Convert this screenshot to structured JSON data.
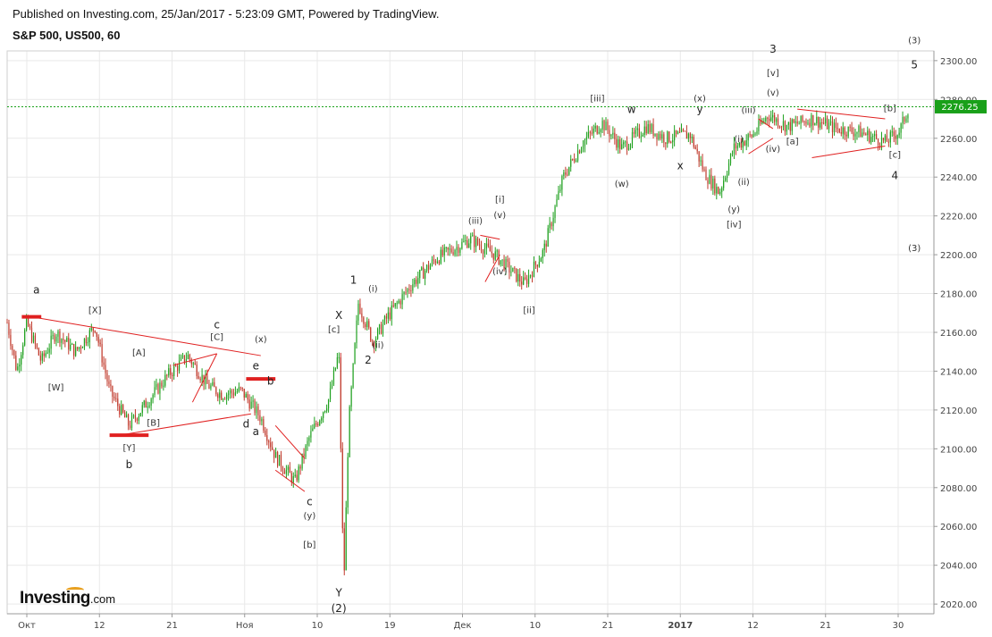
{
  "header": {
    "published": "Published on Investing.com, 25/Jan/2017 - 5:23:09 GMT, Powered by TradingView.",
    "instrument": "S&P 500, US500, 60"
  },
  "logo": {
    "brand": "Investing",
    "suffix": ".com"
  },
  "colors": {
    "up": "#1fa01f",
    "down": "#c0392b",
    "trend": "#e02020",
    "price_line": "#19a019",
    "price_tag": "#19a019",
    "grid": "#e9e9e9"
  },
  "chart_data": {
    "type": "candlestick",
    "title": "S&P 500, US500, 60",
    "ylim": [
      2015,
      2305
    ],
    "y_ticks": [
      "2020.00",
      "2040.00",
      "2060.00",
      "2080.00",
      "2100.00",
      "2120.00",
      "2140.00",
      "2160.00",
      "2180.00",
      "2200.00",
      "2220.00",
      "2240.00",
      "2260.00",
      "2280.00",
      "2300.00"
    ],
    "x_ticks": [
      "Окт",
      "12",
      "21",
      "Ноя",
      "10",
      "19",
      "Дек",
      "10",
      "21",
      "2017",
      "12",
      "21",
      "30"
    ],
    "current_price": "2276.25",
    "grid": true,
    "price_path": [
      {
        "t": 0,
        "y": 2165
      },
      {
        "t": 2,
        "y": 2140
      },
      {
        "t": 4,
        "y": 2165
      },
      {
        "t": 7,
        "y": 2145
      },
      {
        "t": 10,
        "y": 2160
      },
      {
        "t": 14,
        "y": 2150
      },
      {
        "t": 18,
        "y": 2163
      },
      {
        "t": 21,
        "y": 2130
      },
      {
        "t": 25,
        "y": 2112
      },
      {
        "t": 29,
        "y": 2125
      },
      {
        "t": 33,
        "y": 2138
      },
      {
        "t": 37,
        "y": 2148
      },
      {
        "t": 41,
        "y": 2133
      },
      {
        "t": 44,
        "y": 2128
      },
      {
        "t": 48,
        "y": 2130
      },
      {
        "t": 52,
        "y": 2116
      },
      {
        "t": 55,
        "y": 2096
      },
      {
        "t": 59,
        "y": 2083
      },
      {
        "t": 62,
        "y": 2106
      },
      {
        "t": 66,
        "y": 2126
      },
      {
        "t": 68,
        "y": 2150
      },
      {
        "t": 69,
        "y": 2028
      },
      {
        "t": 70,
        "y": 2112
      },
      {
        "t": 72,
        "y": 2175
      },
      {
        "t": 75,
        "y": 2155
      },
      {
        "t": 78,
        "y": 2168
      },
      {
        "t": 83,
        "y": 2185
      },
      {
        "t": 88,
        "y": 2198
      },
      {
        "t": 95,
        "y": 2208
      },
      {
        "t": 100,
        "y": 2200
      },
      {
        "t": 106,
        "y": 2185
      },
      {
        "t": 110,
        "y": 2202
      },
      {
        "t": 114,
        "y": 2240
      },
      {
        "t": 118,
        "y": 2258
      },
      {
        "t": 122,
        "y": 2268
      },
      {
        "t": 126,
        "y": 2255
      },
      {
        "t": 131,
        "y": 2266
      },
      {
        "t": 135,
        "y": 2260
      },
      {
        "t": 140,
        "y": 2262
      },
      {
        "t": 143,
        "y": 2242
      },
      {
        "t": 146,
        "y": 2232
      },
      {
        "t": 149,
        "y": 2255
      },
      {
        "t": 153,
        "y": 2262
      },
      {
        "t": 156,
        "y": 2272
      },
      {
        "t": 160,
        "y": 2266
      },
      {
        "t": 165,
        "y": 2270
      },
      {
        "t": 170,
        "y": 2265
      },
      {
        "t": 175,
        "y": 2263
      },
      {
        "t": 180,
        "y": 2258
      },
      {
        "t": 183,
        "y": 2264
      },
      {
        "t": 185,
        "y": 2277
      }
    ]
  },
  "waves": [
    {
      "text": "a",
      "t": 6,
      "y": 2180,
      "big": true
    },
    {
      "text": "[X]",
      "t": 18,
      "y": 2170
    },
    {
      "text": "[W]",
      "t": 10,
      "y": 2130
    },
    {
      "text": "[A]",
      "t": 27,
      "y": 2148
    },
    {
      "text": "[B]",
      "t": 30,
      "y": 2112
    },
    {
      "text": "[Y]",
      "t": 25,
      "y": 2099
    },
    {
      "text": "b",
      "t": 25,
      "y": 2090,
      "big": true
    },
    {
      "text": "c",
      "t": 43,
      "y": 2162,
      "big": true
    },
    {
      "text": "[C]",
      "t": 43,
      "y": 2156
    },
    {
      "text": "(x)",
      "t": 52,
      "y": 2155
    },
    {
      "text": "e",
      "t": 51,
      "y": 2141,
      "big": true
    },
    {
      "text": "b",
      "t": 54,
      "y": 2133,
      "big": true
    },
    {
      "text": "d",
      "t": 49,
      "y": 2111,
      "big": true
    },
    {
      "text": "a",
      "t": 51,
      "y": 2107,
      "big": true
    },
    {
      "text": "c",
      "t": 62,
      "y": 2071,
      "big": true
    },
    {
      "text": "(y)",
      "t": 62,
      "y": 2064
    },
    {
      "text": "[b]",
      "t": 62,
      "y": 2049
    },
    {
      "text": "Y",
      "t": 68,
      "y": 2024,
      "big": true
    },
    {
      "text": "(2)",
      "t": 68,
      "y": 2016,
      "big": true
    },
    {
      "text": "1",
      "t": 71,
      "y": 2185,
      "big": true
    },
    {
      "text": "X",
      "t": 68,
      "y": 2167,
      "big": true
    },
    {
      "text": "[c]",
      "t": 67,
      "y": 2160
    },
    {
      "text": "(i)",
      "t": 75,
      "y": 2181
    },
    {
      "text": "(ii)",
      "t": 76,
      "y": 2152
    },
    {
      "text": "2",
      "t": 74,
      "y": 2144,
      "big": true
    },
    {
      "text": "(iii)",
      "t": 96,
      "y": 2216
    },
    {
      "text": "[i]",
      "t": 101,
      "y": 2227
    },
    {
      "text": "(v)",
      "t": 101,
      "y": 2219
    },
    {
      "text": "(iv)",
      "t": 101,
      "y": 2190
    },
    {
      "text": "[ii]",
      "t": 107,
      "y": 2170
    },
    {
      "text": "[iii]",
      "t": 121,
      "y": 2279
    },
    {
      "text": "w",
      "t": 128,
      "y": 2273,
      "big": true
    },
    {
      "text": "(w)",
      "t": 126,
      "y": 2235
    },
    {
      "text": "(x)",
      "t": 142,
      "y": 2279
    },
    {
      "text": "y",
      "t": 142,
      "y": 2273,
      "big": true
    },
    {
      "text": "x",
      "t": 138,
      "y": 2244,
      "big": true
    },
    {
      "text": "3",
      "t": 157,
      "y": 2304,
      "big": true
    },
    {
      "text": "[v]",
      "t": 157,
      "y": 2292
    },
    {
      "text": "(v)",
      "t": 157,
      "y": 2282
    },
    {
      "text": "(iii)",
      "t": 152,
      "y": 2273
    },
    {
      "text": "(i)",
      "t": 150,
      "y": 2258
    },
    {
      "text": "(iv)",
      "t": 157,
      "y": 2253
    },
    {
      "text": "[a]",
      "t": 161,
      "y": 2257
    },
    {
      "text": "(ii)",
      "t": 151,
      "y": 2236
    },
    {
      "text": "(y)",
      "t": 149,
      "y": 2222
    },
    {
      "text": "[iv]",
      "t": 149,
      "y": 2214
    },
    {
      "text": "[b]",
      "t": 181,
      "y": 2274
    },
    {
      "text": "[c]",
      "t": 182,
      "y": 2250
    },
    {
      "text": "4",
      "t": 182,
      "y": 2239,
      "big": true
    },
    {
      "text": "(3)",
      "t": 186,
      "y": 2309
    },
    {
      "text": "5",
      "t": 186,
      "y": 2296,
      "big": true
    },
    {
      "text": "(3)",
      "t": 186,
      "y": 2202
    }
  ],
  "trendlines": [
    {
      "t1": 5,
      "y1": 2168,
      "t2": 52,
      "y2": 2148
    },
    {
      "t1": 23,
      "y1": 2107,
      "t2": 50,
      "y2": 2118
    },
    {
      "t1": 34,
      "y1": 2143,
      "t2": 43,
      "y2": 2149
    },
    {
      "t1": 38,
      "y1": 2124,
      "t2": 43,
      "y2": 2149
    },
    {
      "t1": 55,
      "y1": 2112,
      "t2": 61,
      "y2": 2095
    },
    {
      "t1": 55,
      "y1": 2089,
      "t2": 61,
      "y2": 2078
    },
    {
      "t1": 98,
      "y1": 2186,
      "t2": 101,
      "y2": 2200
    },
    {
      "t1": 97,
      "y1": 2210,
      "t2": 101,
      "y2": 2208
    },
    {
      "t1": 154,
      "y1": 2270,
      "t2": 157,
      "y2": 2265
    },
    {
      "t1": 152,
      "y1": 2252,
      "t2": 157,
      "y2": 2260
    },
    {
      "t1": 162,
      "y1": 2275,
      "t2": 180,
      "y2": 2270
    },
    {
      "t1": 165,
      "y1": 2250,
      "t2": 180,
      "y2": 2256
    }
  ],
  "support_lines": [
    {
      "t1": 3,
      "t2": 7,
      "y": 2168
    },
    {
      "t1": 21,
      "t2": 29,
      "y": 2107
    },
    {
      "t1": 49,
      "t2": 55,
      "y": 2136
    }
  ]
}
